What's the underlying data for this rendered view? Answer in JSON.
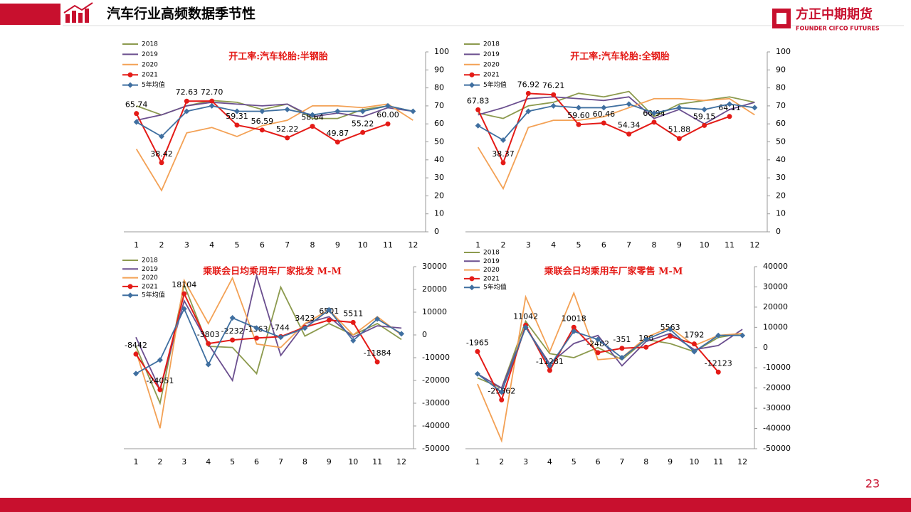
{
  "header": {
    "title": "汽车行业高频数据季节性",
    "logo": "方正中期期货",
    "logo_en": "FOUNDER CIFCO FUTURES",
    "page": "23"
  },
  "chart_data": [
    {
      "type": "line",
      "title": "开工率:汽车轮胎:半钢胎",
      "categories": [
        "1",
        "2",
        "3",
        "4",
        "5",
        "6",
        "7",
        "8",
        "9",
        "10",
        "11",
        "12"
      ],
      "ylim": [
        0,
        100
      ],
      "yticks": [
        0,
        10,
        20,
        30,
        40,
        50,
        60,
        70,
        80,
        90,
        100
      ],
      "yaxis_position": "right",
      "series": [
        {
          "name": "2018",
          "color": "#8c9a4e",
          "values": [
            70,
            65,
            70,
            73,
            72,
            68,
            71,
            63,
            63,
            68,
            70,
            67
          ]
        },
        {
          "name": "2019",
          "color": "#6b4f8f",
          "values": [
            62,
            65,
            70,
            72,
            71,
            70,
            71,
            64,
            66,
            64,
            69,
            67
          ]
        },
        {
          "name": "2020",
          "color": "#f3a155",
          "values": [
            46,
            23,
            55,
            58,
            53,
            59,
            62,
            70,
            70,
            69,
            71,
            62
          ]
        },
        {
          "name": "2021",
          "color": "#e41b17",
          "marker": "circle",
          "values": [
            65.74,
            38.42,
            72.63,
            72.7,
            59.31,
            56.59,
            52.22,
            58.64,
            49.87,
            55.22,
            60.0,
            null
          ],
          "value_labels": [
            "65.74",
            "38.42",
            "72.63",
            "72.70",
            "59.31",
            "56.59",
            "52.22",
            "58.64",
            "49.87",
            "55.22",
            "60.00",
            null
          ]
        },
        {
          "name": "5年均值",
          "color": "#3f6fa0",
          "marker": "diamond",
          "values": [
            61,
            53,
            67,
            70,
            67,
            67,
            68,
            65,
            67,
            67,
            70,
            67
          ]
        }
      ]
    },
    {
      "type": "line",
      "title": "开工率:汽车轮胎:全钢胎",
      "categories": [
        "1",
        "2",
        "3",
        "4",
        "5",
        "6",
        "7",
        "8",
        "9",
        "10",
        "11",
        "12"
      ],
      "ylim": [
        0,
        100
      ],
      "yticks": [
        0,
        10,
        20,
        30,
        40,
        50,
        60,
        70,
        80,
        90,
        100
      ],
      "yaxis_position": "right",
      "series": [
        {
          "name": "2018",
          "color": "#8c9a4e",
          "values": [
            66,
            63,
            70,
            72,
            77,
            75,
            78,
            64,
            71,
            73,
            75,
            72
          ]
        },
        {
          "name": "2019",
          "color": "#6b4f8f",
          "values": [
            65,
            69,
            74,
            75,
            74,
            73,
            75,
            63,
            68,
            60,
            68,
            72
          ]
        },
        {
          "name": "2020",
          "color": "#f3a155",
          "values": [
            47,
            24,
            58,
            62,
            62,
            64,
            69,
            74,
            74,
            73,
            74,
            65
          ]
        },
        {
          "name": "2021",
          "color": "#e41b17",
          "marker": "circle",
          "values": [
            67.83,
            38.37,
            76.92,
            76.21,
            59.6,
            60.46,
            54.34,
            60.94,
            51.88,
            59.15,
            64.11,
            null
          ],
          "value_labels": [
            "67.83",
            "38.37",
            "76.92",
            "76.21",
            "59.60",
            "60.46",
            "54.34",
            "60.94",
            "51.88",
            "59.15",
            "64.11",
            null
          ]
        },
        {
          "name": "5年均值",
          "color": "#3f6fa0",
          "marker": "diamond",
          "values": [
            59,
            51,
            67,
            70,
            69,
            69,
            71,
            66,
            69,
            68,
            71,
            69
          ]
        }
      ]
    },
    {
      "type": "line",
      "title": "乘联会日均乘用车厂家批发 M-M",
      "categories": [
        "1",
        "2",
        "3",
        "4",
        "5",
        "6",
        "7",
        "8",
        "9",
        "10",
        "11",
        "12"
      ],
      "ylim": [
        -50000,
        30000
      ],
      "yticks": [
        -50000,
        -40000,
        -30000,
        -20000,
        -10000,
        0,
        10000,
        20000,
        30000
      ],
      "yaxis_position": "right",
      "series": [
        {
          "name": "2018",
          "color": "#8c9a4e",
          "values": [
            -5000,
            -30000,
            22000,
            -5000,
            -5500,
            -17000,
            21000,
            -500,
            5000,
            0,
            5000,
            -2000
          ]
        },
        {
          "name": "2019",
          "color": "#6b4f8f",
          "values": [
            -1000,
            -24000,
            15000,
            -4000,
            -20000,
            26000,
            -9000,
            5000,
            8000,
            -1000,
            4000,
            3000
          ]
        },
        {
          "name": "2020",
          "color": "#f3a155",
          "values": [
            -7000,
            -41000,
            24000,
            5000,
            25000,
            -4000,
            -5500,
            5000,
            11000,
            0,
            8000,
            0
          ]
        },
        {
          "name": "2021",
          "color": "#e41b17",
          "marker": "circle",
          "values": [
            -8442,
            -24051,
            18104,
            -3803,
            -2232,
            -1363,
            -744,
            3423,
            6501,
            5511,
            -11884,
            null
          ]
        },
        {
          "name": "5年均值",
          "color": "#3f6fa0",
          "marker": "diamond",
          "values": [
            -17000,
            -11000,
            11500,
            -13000,
            7500,
            3000,
            -1000,
            3000,
            11000,
            -2500,
            7000,
            500
          ]
        }
      ]
    },
    {
      "type": "line",
      "title": "乘联会日均乘用车厂家零售 M-M",
      "categories": [
        "1",
        "2",
        "3",
        "4",
        "5",
        "6",
        "7",
        "8",
        "9",
        "10",
        "11",
        "12"
      ],
      "ylim": [
        -50000,
        40000
      ],
      "yticks": [
        -50000,
        -40000,
        -30000,
        -20000,
        -10000,
        0,
        10000,
        20000,
        30000,
        40000
      ],
      "yaxis_position": "right",
      "series": [
        {
          "name": "2018",
          "color": "#8c9a4e",
          "values": [
            -15000,
            -20000,
            13000,
            -3000,
            -5000,
            0,
            -6000,
            4000,
            2000,
            -2000,
            5000,
            7000
          ]
        },
        {
          "name": "2019",
          "color": "#6b4f8f",
          "values": [
            -13000,
            -20000,
            10000,
            -8000,
            2000,
            6000,
            -9000,
            3000,
            7000,
            -1000,
            1000,
            9000
          ]
        },
        {
          "name": "2020",
          "color": "#f3a155",
          "values": [
            -18000,
            -46000,
            25000,
            -2000,
            27000,
            -6000,
            -5000,
            5000,
            10000,
            1000,
            6000,
            7000
          ]
        },
        {
          "name": "2021",
          "color": "#e41b17",
          "marker": "circle",
          "values": [
            -1965,
            -25862,
            11042,
            -11281,
            10018,
            -2482,
            -351,
            196,
            5563,
            1792,
            -12123,
            null
          ]
        },
        {
          "name": "5年均值",
          "color": "#3f6fa0",
          "marker": "diamond",
          "values": [
            -13000,
            -22000,
            10000,
            -9000,
            8000,
            4000,
            -5000,
            4000,
            9000,
            -2000,
            6000,
            6000
          ]
        }
      ]
    }
  ]
}
